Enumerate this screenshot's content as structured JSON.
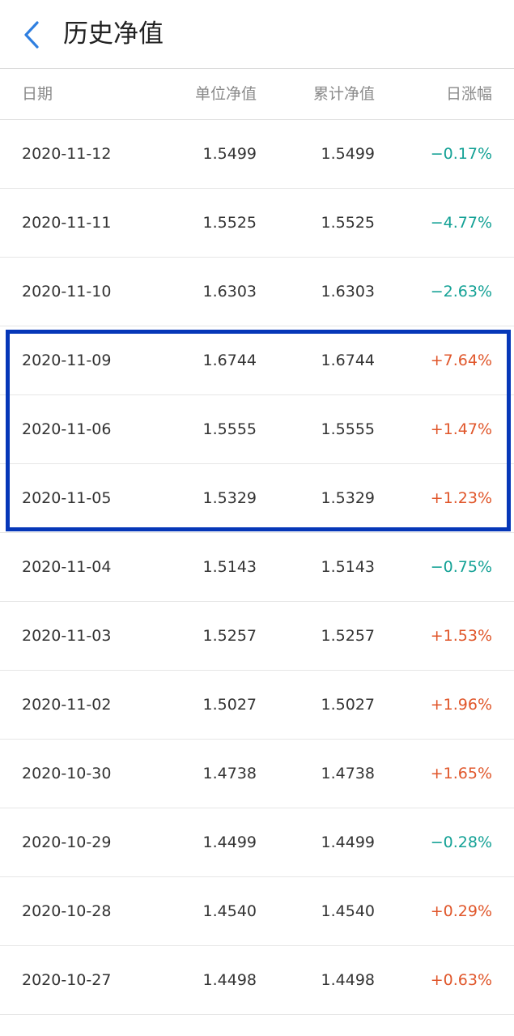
{
  "header": {
    "title": "历史净值",
    "back_icon": "chevron-left-icon",
    "accent": "#2f7fe0"
  },
  "columns": {
    "date": "日期",
    "unit_nav": "单位净值",
    "acc_nav": "累计净值",
    "change": "日涨幅"
  },
  "colors": {
    "up": "#e0562a",
    "down": "#13a195",
    "highlight": "#0637b8"
  },
  "rows": [
    {
      "date": "2020-11-12",
      "unit": "1.5499",
      "acc": "1.5499",
      "change": "−0.17%",
      "dir": "down"
    },
    {
      "date": "2020-11-11",
      "unit": "1.5525",
      "acc": "1.5525",
      "change": "−4.77%",
      "dir": "down"
    },
    {
      "date": "2020-11-10",
      "unit": "1.6303",
      "acc": "1.6303",
      "change": "−2.63%",
      "dir": "down"
    },
    {
      "date": "2020-11-09",
      "unit": "1.6744",
      "acc": "1.6744",
      "change": "+7.64%",
      "dir": "up"
    },
    {
      "date": "2020-11-06",
      "unit": "1.5555",
      "acc": "1.5555",
      "change": "+1.47%",
      "dir": "up"
    },
    {
      "date": "2020-11-05",
      "unit": "1.5329",
      "acc": "1.5329",
      "change": "+1.23%",
      "dir": "up"
    },
    {
      "date": "2020-11-04",
      "unit": "1.5143",
      "acc": "1.5143",
      "change": "−0.75%",
      "dir": "down"
    },
    {
      "date": "2020-11-03",
      "unit": "1.5257",
      "acc": "1.5257",
      "change": "+1.53%",
      "dir": "up"
    },
    {
      "date": "2020-11-02",
      "unit": "1.5027",
      "acc": "1.5027",
      "change": "+1.96%",
      "dir": "up"
    },
    {
      "date": "2020-10-30",
      "unit": "1.4738",
      "acc": "1.4738",
      "change": "+1.65%",
      "dir": "up"
    },
    {
      "date": "2020-10-29",
      "unit": "1.4499",
      "acc": "1.4499",
      "change": "−0.28%",
      "dir": "down"
    },
    {
      "date": "2020-10-28",
      "unit": "1.4540",
      "acc": "1.4540",
      "change": "+0.29%",
      "dir": "up"
    },
    {
      "date": "2020-10-27",
      "unit": "1.4498",
      "acc": "1.4498",
      "change": "+0.63%",
      "dir": "up"
    }
  ]
}
